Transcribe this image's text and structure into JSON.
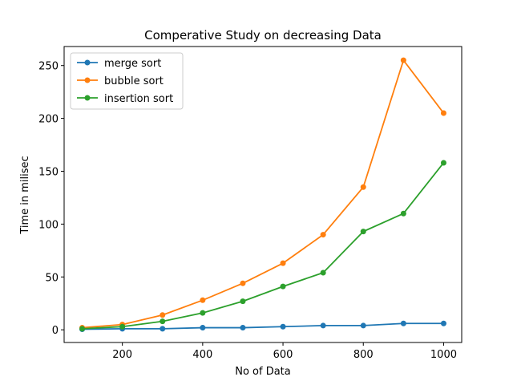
{
  "chart_data": {
    "type": "line",
    "title": "Comperative Study on decreasing Data",
    "xlabel": "No of Data",
    "ylabel": "Time in milisec",
    "x": [
      100,
      200,
      300,
      400,
      500,
      600,
      700,
      800,
      900,
      1000
    ],
    "xlim": [
      55,
      1045
    ],
    "ylim": [
      -12,
      268
    ],
    "xticks": [
      200,
      400,
      600,
      800,
      1000
    ],
    "yticks": [
      0,
      50,
      100,
      150,
      200,
      250
    ],
    "grid": false,
    "legend_position": "top-left",
    "series": [
      {
        "name": "merge sort",
        "color": "#1f77b4",
        "values": [
          0.5,
          1,
          1,
          2,
          2,
          3,
          4,
          4,
          6,
          6
        ]
      },
      {
        "name": "bubble sort",
        "color": "#ff7f0e",
        "values": [
          2,
          5,
          14,
          28,
          44,
          63,
          90,
          135,
          255,
          205
        ]
      },
      {
        "name": "insertion sort",
        "color": "#2ca02c",
        "values": [
          1,
          3,
          8,
          16,
          27,
          41,
          54,
          93,
          110,
          158
        ]
      }
    ]
  }
}
